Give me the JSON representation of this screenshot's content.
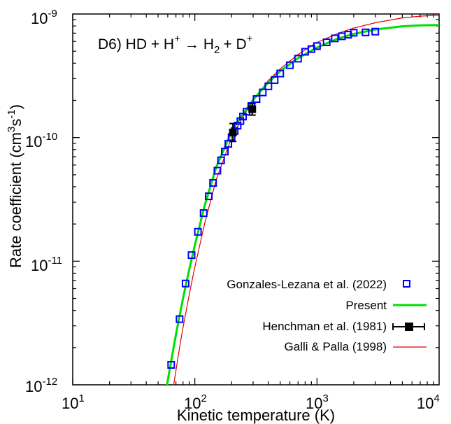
{
  "chart_data": {
    "type": "scatter",
    "annotation": {
      "reaction": "D6) HD + H",
      "reactant_charge": "+",
      "arrow": "→",
      "product_main": "H",
      "product_subscript": "2",
      "plus": "+ D",
      "product_charge": "+"
    },
    "xlabel": "Kinetic temperature (K)",
    "ylabel": {
      "main": "Rate coefficient (cm",
      "cm_exp": "3",
      "s": "s",
      "s_exp": "-1",
      "close": ")"
    },
    "xscale": "log",
    "yscale": "log",
    "xlim": [
      10,
      10000
    ],
    "ylim": [
      1e-12,
      1e-09
    ],
    "x_ticks": [
      {
        "base": "10",
        "exp": "1"
      },
      {
        "base": "10",
        "exp": "2"
      },
      {
        "base": "10",
        "exp": "3"
      },
      {
        "base": "10",
        "exp": "4"
      }
    ],
    "y_ticks": [
      {
        "base": "10",
        "exp": "-12"
      },
      {
        "base": "10",
        "exp": "-11"
      },
      {
        "base": "10",
        "exp": "-10"
      },
      {
        "base": "10",
        "exp": "-9"
      }
    ],
    "grid": false,
    "legend_position": "bottom-right",
    "series": [
      {
        "name": "Gonzales-Lezana et al. (2022)",
        "kind": "markers",
        "marker": "open-square",
        "color": "#0000ff",
        "x": [
          64,
          75,
          84,
          94,
          106,
          118,
          130,
          141,
          153,
          164,
          176,
          188,
          200,
          212,
          224,
          236,
          248,
          265,
          290,
          320,
          360,
          400,
          450,
          500,
          600,
          700,
          800,
          900,
          1000,
          1200,
          1400,
          1600,
          1800,
          2000,
          2500,
          3000
        ],
        "y": [
          1.45e-12,
          3.4e-12,
          6.6e-12,
          1.12e-11,
          1.73e-11,
          2.45e-11,
          3.35e-11,
          4.3e-11,
          5.4e-11,
          6.55e-11,
          7.7e-11,
          8.9e-11,
          1.01e-10,
          1.13e-10,
          1.25e-10,
          1.36e-10,
          1.48e-10,
          1.62e-10,
          1.8e-10,
          2.05e-10,
          2.32e-10,
          2.6e-10,
          2.92e-10,
          3.3e-10,
          3.85e-10,
          4.35e-10,
          4.95e-10,
          5.2e-10,
          5.5e-10,
          5.9e-10,
          6.35e-10,
          6.6e-10,
          6.8e-10,
          7.05e-10,
          7.1e-10,
          7.2e-10
        ]
      },
      {
        "name": "Present",
        "kind": "line",
        "color": "#00e000",
        "x": [
          58,
          60,
          65,
          70,
          80,
          90,
          100,
          120,
          150,
          200,
          250,
          300,
          400,
          500,
          700,
          1000,
          1500,
          2000,
          3000,
          5000,
          7000,
          10000
        ],
        "y": [
          8.8e-13,
          1.08e-12,
          1.7e-12,
          2.55e-12,
          5e-12,
          8.6e-12,
          1.35e-11,
          2.8e-11,
          5.8e-11,
          1.12e-10,
          1.58e-10,
          2.02e-10,
          2.8e-10,
          3.45e-10,
          4.4e-10,
          5.35e-10,
          6.35e-10,
          6.9e-10,
          7.5e-10,
          7.95e-10,
          8.1e-10,
          8.15e-10
        ]
      },
      {
        "name": "Henchman et al. (1981)",
        "kind": "errorbar",
        "marker": "filled-square",
        "color": "#000000",
        "x": [
          205,
          295
        ],
        "y": [
          1.1e-10,
          1.7e-10
        ],
        "y_low": [
          9.3e-11,
          1.52e-10
        ],
        "y_high": [
          1.3e-10,
          1.88e-10
        ]
      },
      {
        "name": "Galli & Palla (1998)",
        "kind": "line",
        "color": "#e00000",
        "x": [
          66,
          70,
          75,
          80,
          90,
          100,
          120,
          150,
          200,
          250,
          300,
          400,
          500,
          700,
          1000,
          1500,
          2000,
          3000,
          5000,
          7000,
          10000
        ],
        "y": [
          9e-13,
          1.3e-12,
          2e-12,
          2.9e-12,
          5.4e-12,
          9e-12,
          2e-11,
          4.6e-11,
          1e-10,
          1.5e-10,
          2e-10,
          2.9e-10,
          3.6e-10,
          4.7e-10,
          5.9e-10,
          7e-10,
          7.7e-10,
          8.5e-10,
          9.3e-10,
          9.6e-10,
          9.8e-10
        ]
      }
    ]
  }
}
